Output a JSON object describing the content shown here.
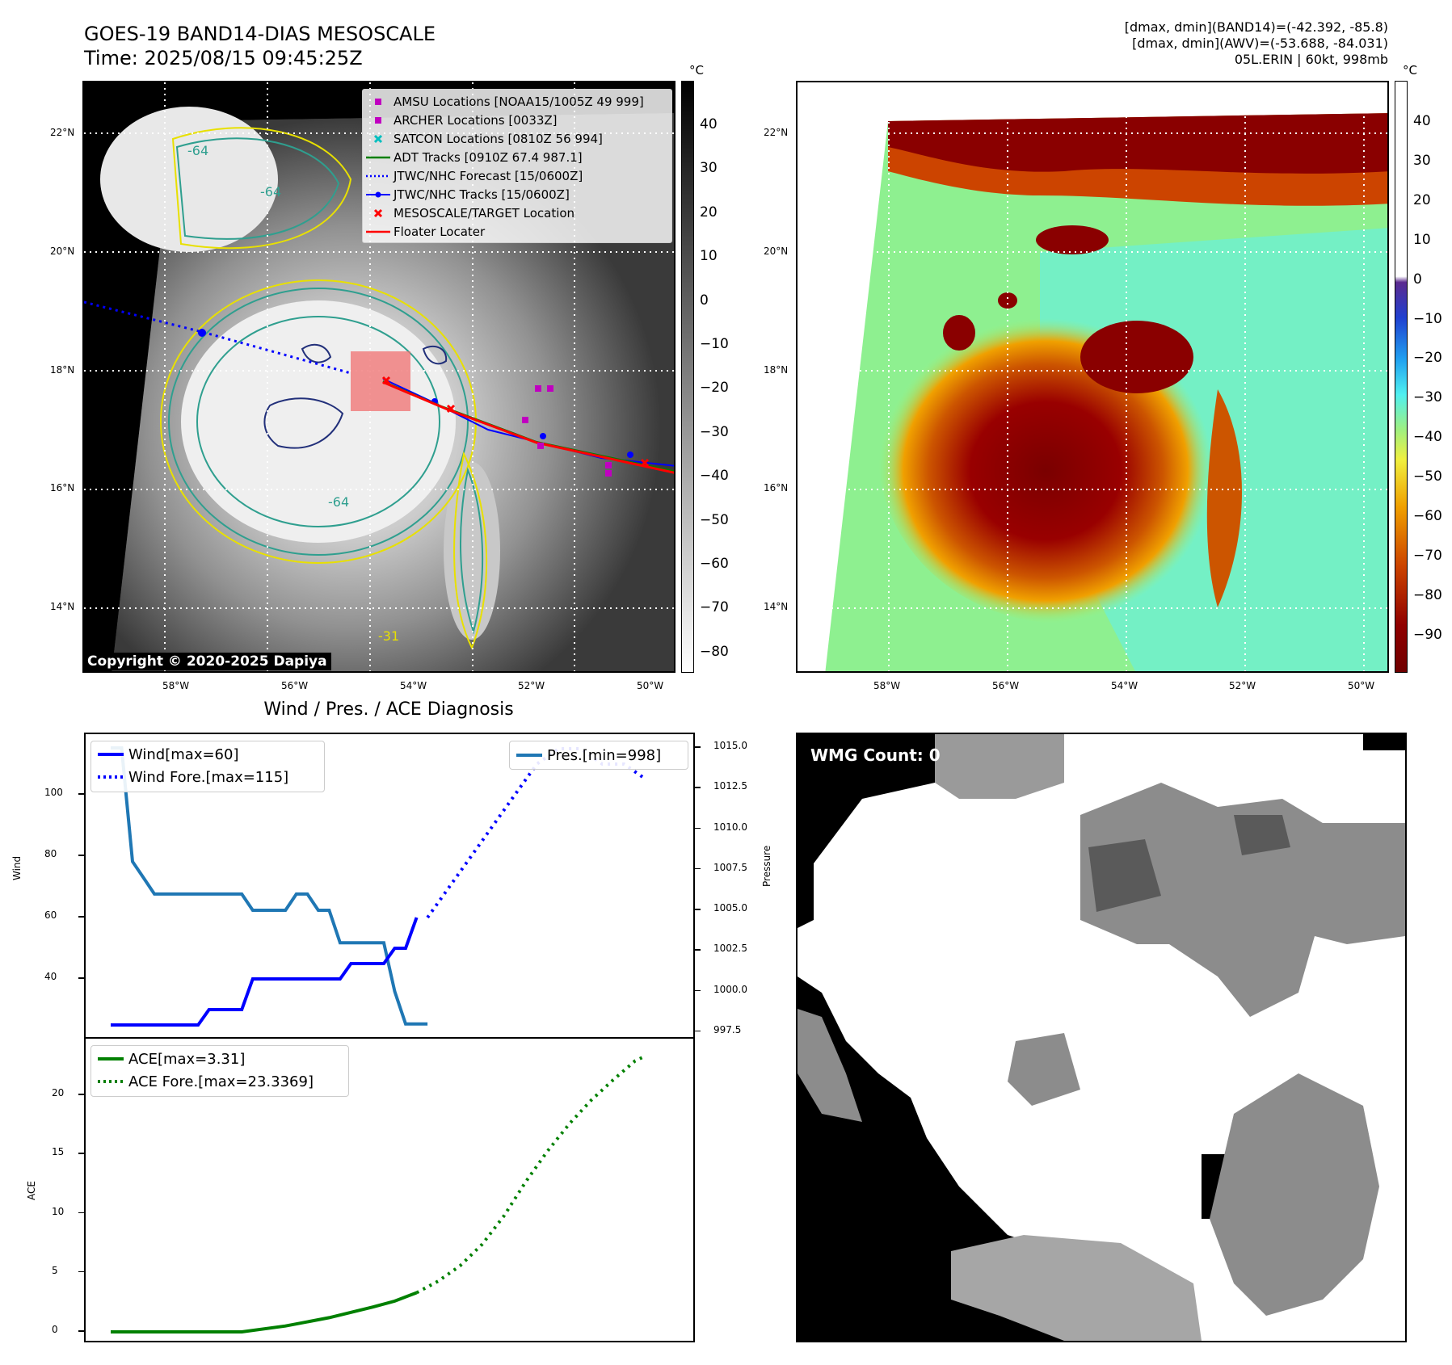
{
  "header": {
    "title": "GOES-19 BAND14-DIAS MESOSCALE",
    "time": "Time: 2025/08/15 09:45:25Z",
    "info_line1": "[dmax, dmin](BAND14)=(-42.392, -85.8)",
    "info_line2": "[dmax, dmin](AWV)=(-53.688, -84.031)",
    "info_line3": "05L.ERIN | 60kt, 998mb"
  },
  "map_axes": {
    "lon_labels": [
      "58°W",
      "56°W",
      "54°W",
      "52°W",
      "50°W"
    ],
    "lat_labels": [
      "22°N",
      "20°N",
      "18°N",
      "16°N",
      "14°N"
    ]
  },
  "ir_map": {
    "colorbar_unit": "°C",
    "colorbar_ticks": [
      "40",
      "30",
      "20",
      "10",
      "0",
      "−10",
      "−20",
      "−30",
      "−40",
      "−50",
      "−60",
      "−70",
      "−80"
    ],
    "contour_labels": [
      "-64",
      "-64",
      "-64",
      "-31"
    ],
    "copyright": "Copyright © 2020-2025 Dapiya",
    "legend": [
      {
        "label": "AMSU Locations [NOAA15/1005Z 49 999]",
        "symbol": "square",
        "color": "#c000c0"
      },
      {
        "label": "ARCHER Locations [0033Z]",
        "symbol": "square",
        "color": "#c000c0"
      },
      {
        "label": "SATCON Locations [0810Z 56 994]",
        "symbol": "x",
        "color": "#00bfbf"
      },
      {
        "label": "ADT Tracks [0910Z 67.4 987.1]",
        "symbol": "line",
        "color": "#008000"
      },
      {
        "label": "JTWC/NHC Forecast [15/0600Z]",
        "symbol": "dotted",
        "color": "#0000ff"
      },
      {
        "label": "JTWC/NHC Tracks [15/0600Z]",
        "symbol": "line-dot",
        "color": "#0000ff"
      },
      {
        "label": "MESOSCALE/TARGET Location",
        "symbol": "x",
        "color": "#ff0000"
      },
      {
        "label": "Floater Locater",
        "symbol": "line",
        "color": "#ff0000"
      }
    ]
  },
  "awv_map": {
    "colorbar_unit": "°C",
    "colorbar_ticks": [
      "40",
      "30",
      "20",
      "10",
      "0",
      "−10",
      "−20",
      "−30",
      "−40",
      "−50",
      "−60",
      "−70",
      "−80",
      "−90"
    ]
  },
  "wmg_panel": {
    "label": "WMG Count: 0"
  },
  "diagnosis": {
    "title": "Wind / Pres. / ACE Diagnosis",
    "wind_ylabel": "Wind",
    "pressure_ylabel": "Pressure",
    "ace_ylabel": "ACE",
    "wind_ticks": [
      "100",
      "80",
      "60",
      "40"
    ],
    "pressure_ticks": [
      "1015.0",
      "1012.5",
      "1010.0",
      "1007.5",
      "1005.0",
      "1002.5",
      "1000.0",
      "997.5"
    ],
    "ace_ticks": [
      "20",
      "15",
      "10",
      "5",
      "0"
    ],
    "legend_wind": "Wind[max=60]",
    "legend_wind_fore": "Wind Fore.[max=115]",
    "legend_pres": "Pres.[min=998]",
    "legend_ace": "ACE[max=3.31]",
    "legend_ace_fore": "ACE Fore.[max=23.3369]",
    "colors": {
      "wind": "#0000ff",
      "pressure": "#1f77b4",
      "ace": "#008000"
    }
  },
  "chart_data": [
    {
      "type": "line",
      "title": "Wind / Pres. / ACE Diagnosis",
      "ylabel": "Wind",
      "ylim": [
        21,
        119
      ],
      "series": [
        {
          "name": "Wind[max=60]",
          "style": "solid",
          "color": "#0000ff",
          "x": [
            0,
            1,
            2,
            3,
            4,
            5,
            6,
            7,
            8,
            9,
            10,
            11,
            12,
            13,
            14,
            15,
            16,
            17,
            18,
            19,
            20,
            21,
            22,
            23,
            24,
            25,
            26,
            27,
            28
          ],
          "y": [
            25,
            25,
            25,
            25,
            25,
            25,
            25,
            25,
            25,
            30,
            30,
            30,
            30,
            40,
            40,
            40,
            40,
            40,
            40,
            40,
            40,
            40,
            45,
            45,
            45,
            45,
            50,
            50,
            60
          ]
        },
        {
          "name": "Wind Fore.[max=115]",
          "style": "dotted",
          "color": "#0000ff",
          "x": [
            29,
            31,
            33,
            35,
            37,
            39,
            41,
            43,
            45,
            47,
            49
          ],
          "y": [
            60,
            70,
            80,
            90,
            100,
            110,
            115,
            115,
            110,
            110,
            105
          ]
        }
      ]
    },
    {
      "type": "line",
      "ylabel": "Pressure",
      "ylim": [
        997.2,
        1015.3
      ],
      "series": [
        {
          "name": "Pres.[min=998]",
          "style": "solid",
          "color": "#1f77b4",
          "x": [
            0,
            1,
            2,
            3,
            4,
            5,
            6,
            7,
            8,
            9,
            10,
            11,
            12,
            13,
            14,
            15,
            16,
            17,
            18,
            19,
            20,
            21,
            22,
            23,
            24,
            25,
            26,
            27,
            28,
            29
          ],
          "y": [
            1015,
            1015,
            1008,
            1007,
            1006,
            1006,
            1006,
            1006,
            1006,
            1006,
            1006,
            1006,
            1006,
            1005,
            1005,
            1005,
            1005,
            1006,
            1006,
            1005,
            1005,
            1003,
            1003,
            1003,
            1003,
            1003,
            1000,
            998,
            998,
            998
          ]
        }
      ]
    },
    {
      "type": "line",
      "ylabel": "ACE",
      "ylim": [
        -1.2,
        24.3
      ],
      "series": [
        {
          "name": "ACE[max=3.31]",
          "style": "solid",
          "color": "#008000",
          "x": [
            0,
            4,
            8,
            12,
            16,
            20,
            24,
            26,
            28
          ],
          "y": [
            0,
            0,
            0,
            0,
            0.5,
            1.2,
            2.1,
            2.6,
            3.31
          ]
        },
        {
          "name": "ACE Fore.[max=23.3369]",
          "style": "dotted",
          "color": "#008000",
          "x": [
            28,
            30,
            32,
            34,
            36,
            38,
            40,
            42,
            44,
            46,
            48,
            49
          ],
          "y": [
            3.31,
            4.3,
            5.6,
            7.4,
            9.8,
            12.7,
            15.3,
            17.6,
            19.6,
            21.3,
            22.9,
            23.3369
          ]
        }
      ]
    }
  ]
}
